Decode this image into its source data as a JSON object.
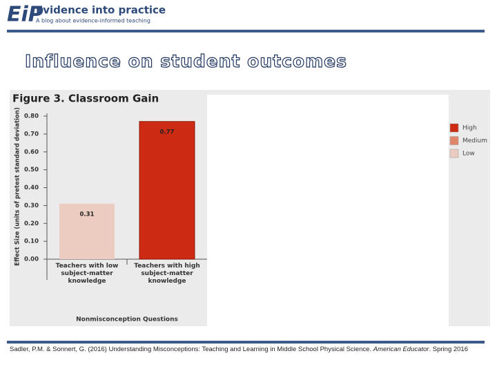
{
  "header": {
    "logo": "EiP",
    "title": "Evidence into practice",
    "subtitle": "A blog about evidence-informed teaching"
  },
  "slide_title": "Influence on student outcomes",
  "citation": [
    "Sadler, P.M. & Sonnert, G. (2016) Understanding Misconceptions: Teaching and Learning in Middle School Physical Science. ",
    "American Educator",
    ". Spring 2016"
  ],
  "chart_data": {
    "type": "bar",
    "title": "Figure 3. Classroom Gain",
    "y_label": "Effect Size (units of pretest standard deviation)",
    "x_label": "Nonmisconception Questions",
    "categories": [
      "Teachers with low subject-matter knowledge",
      "Teachers with high subject-matter knowledge"
    ],
    "series": [
      {
        "name": "High",
        "color": "#cc2a12",
        "values": [
          null,
          0.77
        ]
      },
      {
        "name": "Medium",
        "color": "#e0866a",
        "values": [
          null,
          null
        ]
      },
      {
        "name": "Low",
        "color": "#ecccc0",
        "values": [
          0.31,
          null
        ]
      }
    ],
    "ylim": [
      0,
      0.8
    ],
    "yticks": [
      {
        "value": 0,
        "label": "0.00"
      },
      {
        "value": 0.1,
        "label": "0.10"
      },
      {
        "value": 0.2,
        "label": "0.20"
      },
      {
        "value": 0.3,
        "label": "0.30"
      },
      {
        "value": 0.4,
        "label": "0.40"
      },
      {
        "value": 0.5,
        "label": "0.50"
      },
      {
        "value": 0.6,
        "label": "0.60"
      },
      {
        "value": 0.7,
        "label": "0.70"
      },
      {
        "value": 0.8,
        "label": "0.80"
      }
    ],
    "legend": "right"
  }
}
